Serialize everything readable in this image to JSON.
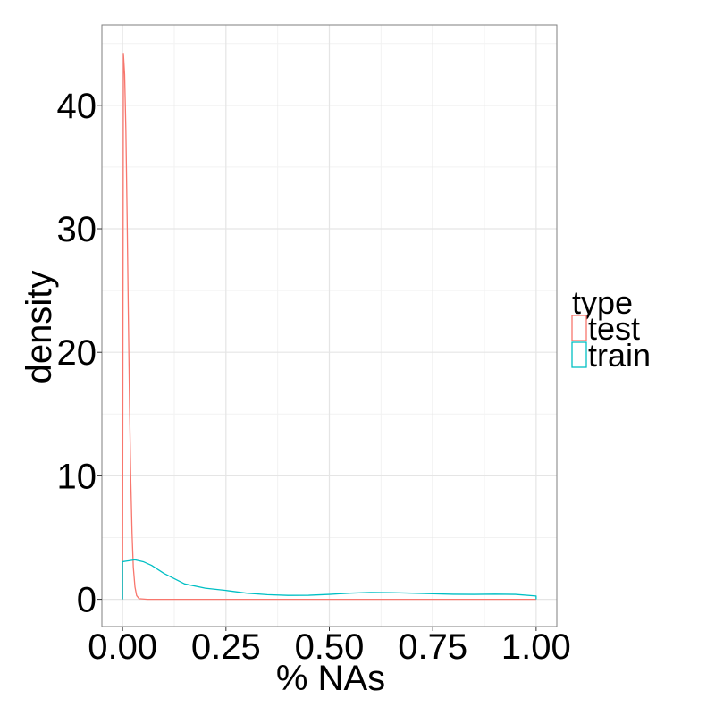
{
  "chart_data": {
    "type": "line",
    "subtype": "density",
    "title": "",
    "xlabel": "% NAs",
    "ylabel": "density",
    "xlim": [
      -0.05,
      1.05
    ],
    "ylim": [
      -2.2,
      46.5
    ],
    "x_ticks": [
      0,
      0.25,
      0.5,
      0.75,
      1
    ],
    "x_tick_labels": [
      "0.00",
      "0.25",
      "0.50",
      "0.75",
      "1.00"
    ],
    "y_ticks": [
      0,
      10,
      20,
      30,
      40
    ],
    "y_tick_labels": [
      "0",
      "10",
      "20",
      "30",
      "40"
    ],
    "grid": true,
    "legend": {
      "title": "type",
      "position": "right"
    },
    "series": [
      {
        "name": "test",
        "color": "#F8766D",
        "x": [
          0,
          0.002,
          0.005,
          0.008,
          0.011,
          0.014,
          0.017,
          0.02,
          0.023,
          0.026,
          0.03,
          0.034,
          0.04,
          0.06,
          1
        ],
        "y": [
          0,
          44.2,
          42.5,
          38.0,
          31.0,
          23.0,
          15.5,
          9.5,
          5.3,
          2.6,
          1.0,
          0.3,
          0.05,
          0,
          0
        ]
      },
      {
        "name": "train",
        "color": "#00BFC4",
        "x": [
          0,
          0,
          0.01,
          0.03,
          0.05,
          0.07,
          0.1,
          0.15,
          0.2,
          0.25,
          0.3,
          0.35,
          0.4,
          0.45,
          0.5,
          0.55,
          0.6,
          0.65,
          0.7,
          0.75,
          0.8,
          0.85,
          0.9,
          0.95,
          1.0,
          1.0
        ],
        "y": [
          0,
          3.05,
          3.1,
          3.2,
          3.05,
          2.75,
          2.1,
          1.25,
          0.9,
          0.72,
          0.5,
          0.38,
          0.32,
          0.33,
          0.4,
          0.5,
          0.56,
          0.54,
          0.5,
          0.45,
          0.41,
          0.4,
          0.42,
          0.4,
          0.27,
          0
        ]
      }
    ]
  }
}
